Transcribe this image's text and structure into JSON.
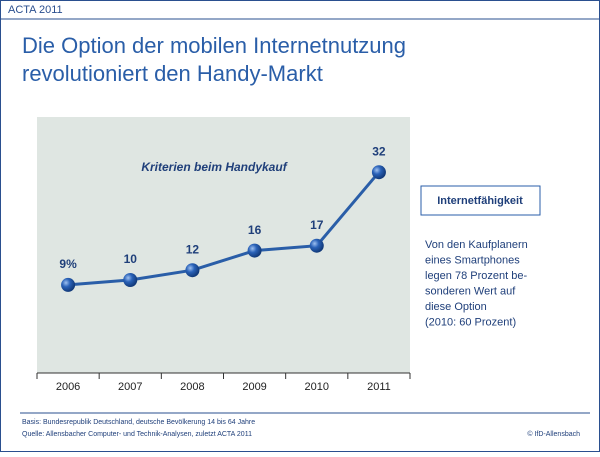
{
  "header": "ACTA 2011",
  "title": [
    "Die Option der mobilen Internetnutzung",
    "revolutioniert den Handy-Markt"
  ],
  "chart_data": {
    "type": "line",
    "title": "Kriterien beim Handykauf",
    "categories": [
      "2006",
      "2007",
      "2008",
      "2009",
      "2010",
      "2011"
    ],
    "series": [
      {
        "name": "Internetfähigkeit",
        "color": "#2a5ea8",
        "values": [
          9,
          10,
          12,
          16,
          17,
          32
        ],
        "value_labels": [
          "9%",
          "10",
          "12",
          "16",
          "17",
          "32"
        ]
      }
    ]
  },
  "note": [
    "Von den Kaufplanern",
    "eines Smartphones",
    "legen 78 Prozent be-",
    "sonderen Wert auf",
    "diese Option",
    "(2010: 60 Prozent)"
  ],
  "footer": {
    "basis": "Basis: Bundesrepublik Deutschland, deutsche Bevölkerung 14 bis 64 Jahre",
    "source": "Quelle: Allensbacher Computer- und Technik-Analysen, zuletzt ACTA 2011",
    "copyright": "© IfD-Allensbach"
  }
}
